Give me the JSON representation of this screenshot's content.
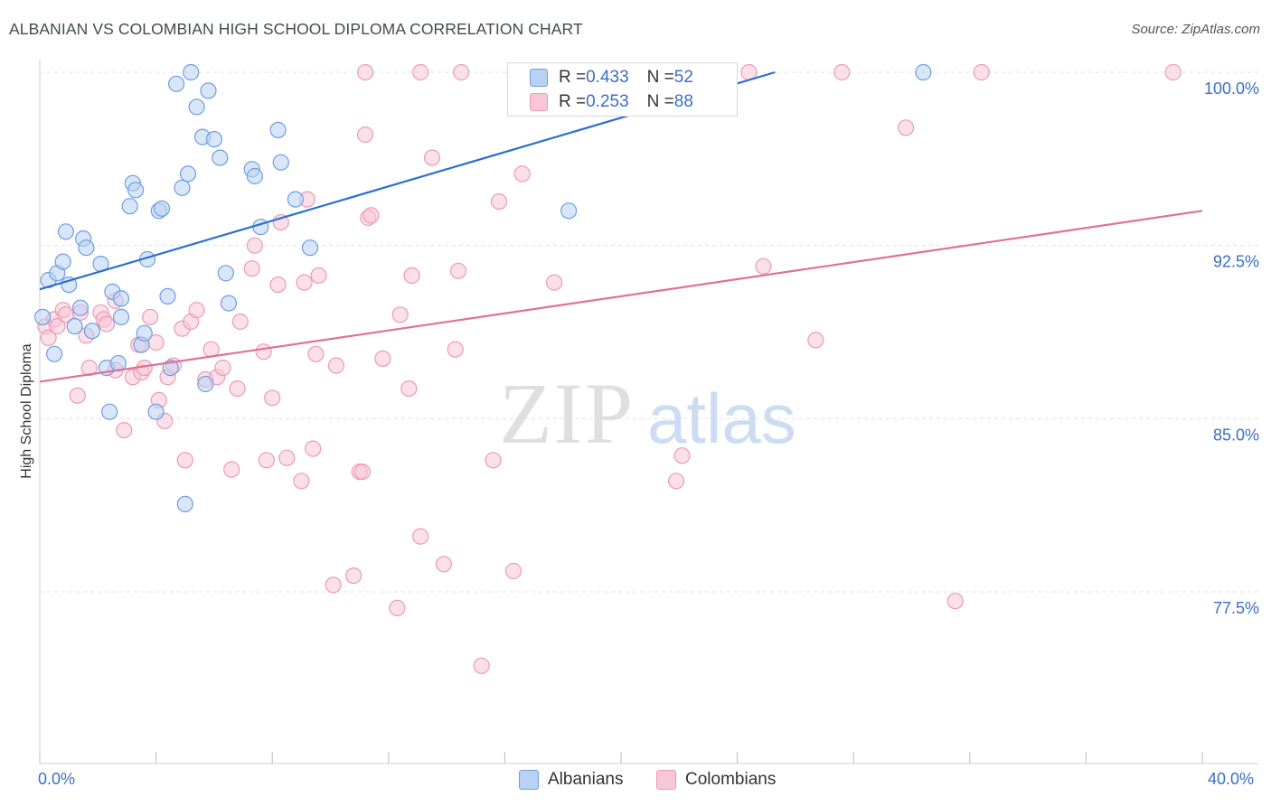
{
  "title": "ALBANIAN VS COLOMBIAN HIGH SCHOOL DIPLOMA CORRELATION CHART",
  "source": "Source: ZipAtlas.com",
  "watermark": {
    "zip": "ZIP",
    "atlas": "atlas"
  },
  "colors": {
    "albanians_fill": "#b9d2f4",
    "albanians_stroke": "#6d9ee0",
    "albanians_line": "#2c6fcf",
    "colombians_fill": "#f8c6d6",
    "colombians_stroke": "#ec9ab6",
    "colombians_line": "#e0709a",
    "axis_text": "#3a6fc4",
    "grid": "#e1e1e1"
  },
  "legend_top": [
    {
      "r_label": "R = ",
      "r_value": "0.433",
      "n_label": "N = ",
      "n_value": "52"
    },
    {
      "r_label": "R = ",
      "r_value": "0.253",
      "n_label": "N = ",
      "n_value": "88"
    }
  ],
  "chart_data": {
    "type": "scatter",
    "title": "ALBANIAN VS COLOMBIAN HIGH SCHOOL DIPLOMA CORRELATION CHART",
    "xlabel": "",
    "ylabel": "High School Diploma",
    "xlim": [
      0,
      40
    ],
    "ylim": [
      70.0,
      101.0
    ],
    "x_tick_labels": [
      "0.0%",
      "40.0%"
    ],
    "y_ticks": [
      77.5,
      85.0,
      92.5,
      100.0
    ],
    "y_tick_labels": [
      "77.5%",
      "85.0%",
      "92.5%",
      "100.0%"
    ],
    "grid": true,
    "legend_placement": "bottom",
    "series": [
      {
        "name": "Albanians",
        "r": 0.433,
        "n": 52,
        "trend": {
          "x": [
            0.0,
            25.3
          ],
          "y": [
            90.6,
            100.0
          ]
        },
        "points": [
          [
            0.1,
            89.4
          ],
          [
            0.3,
            91.0
          ],
          [
            0.5,
            87.8
          ],
          [
            0.6,
            91.3
          ],
          [
            0.8,
            91.8
          ],
          [
            0.9,
            93.1
          ],
          [
            1.0,
            90.8
          ],
          [
            1.2,
            89.0
          ],
          [
            1.4,
            89.8
          ],
          [
            1.5,
            92.8
          ],
          [
            1.6,
            92.4
          ],
          [
            1.8,
            88.8
          ],
          [
            2.1,
            91.7
          ],
          [
            2.3,
            87.2
          ],
          [
            2.4,
            85.3
          ],
          [
            2.5,
            90.5
          ],
          [
            2.8,
            89.4
          ],
          [
            2.8,
            90.2
          ],
          [
            2.7,
            87.4
          ],
          [
            3.1,
            94.2
          ],
          [
            3.2,
            95.2
          ],
          [
            3.3,
            94.9
          ],
          [
            3.5,
            88.2
          ],
          [
            3.6,
            88.7
          ],
          [
            3.7,
            91.9
          ],
          [
            4.0,
            85.3
          ],
          [
            4.1,
            94.0
          ],
          [
            4.2,
            94.1
          ],
          [
            4.4,
            90.3
          ],
          [
            4.5,
            87.2
          ],
          [
            4.7,
            99.5
          ],
          [
            4.9,
            95.0
          ],
          [
            5.0,
            81.3
          ],
          [
            5.1,
            95.6
          ],
          [
            5.2,
            100.0
          ],
          [
            5.4,
            98.5
          ],
          [
            5.6,
            97.2
          ],
          [
            5.7,
            86.5
          ],
          [
            5.8,
            99.2
          ],
          [
            6.0,
            97.1
          ],
          [
            6.2,
            96.3
          ],
          [
            6.4,
            91.3
          ],
          [
            6.5,
            90.0
          ],
          [
            7.3,
            95.8
          ],
          [
            7.4,
            95.5
          ],
          [
            7.6,
            93.3
          ],
          [
            8.2,
            97.5
          ],
          [
            8.3,
            96.1
          ],
          [
            8.8,
            94.5
          ],
          [
            9.3,
            92.4
          ],
          [
            18.2,
            94.0
          ],
          [
            30.4,
            100.0
          ]
        ]
      },
      {
        "name": "Colombians",
        "r": 0.253,
        "n": 88,
        "trend": {
          "x": [
            0.0,
            40.0
          ],
          "y": [
            86.6,
            94.0
          ]
        },
        "points": [
          [
            0.2,
            89.0
          ],
          [
            0.3,
            88.5
          ],
          [
            0.5,
            89.3
          ],
          [
            0.6,
            89.0
          ],
          [
            0.8,
            89.7
          ],
          [
            0.9,
            89.5
          ],
          [
            1.3,
            86.0
          ],
          [
            1.4,
            89.6
          ],
          [
            1.6,
            88.6
          ],
          [
            1.7,
            87.2
          ],
          [
            2.1,
            89.6
          ],
          [
            2.2,
            89.3
          ],
          [
            2.3,
            89.1
          ],
          [
            2.6,
            87.1
          ],
          [
            2.6,
            90.1
          ],
          [
            2.9,
            84.5
          ],
          [
            3.2,
            86.8
          ],
          [
            3.4,
            88.2
          ],
          [
            3.5,
            87.0
          ],
          [
            3.6,
            87.2
          ],
          [
            3.8,
            89.4
          ],
          [
            4.0,
            88.3
          ],
          [
            4.1,
            85.8
          ],
          [
            4.3,
            84.9
          ],
          [
            4.4,
            86.8
          ],
          [
            4.6,
            87.3
          ],
          [
            4.9,
            88.9
          ],
          [
            5.0,
            83.2
          ],
          [
            5.2,
            89.2
          ],
          [
            5.4,
            89.7
          ],
          [
            5.7,
            86.7
          ],
          [
            5.9,
            88.0
          ],
          [
            6.1,
            86.8
          ],
          [
            6.3,
            87.2
          ],
          [
            6.6,
            82.8
          ],
          [
            6.8,
            86.3
          ],
          [
            6.9,
            89.2
          ],
          [
            7.3,
            91.5
          ],
          [
            7.4,
            92.5
          ],
          [
            7.7,
            87.9
          ],
          [
            7.8,
            83.2
          ],
          [
            8.0,
            85.9
          ],
          [
            8.2,
            90.8
          ],
          [
            8.3,
            93.5
          ],
          [
            8.5,
            83.3
          ],
          [
            9.0,
            82.3
          ],
          [
            9.1,
            90.9
          ],
          [
            9.2,
            94.5
          ],
          [
            9.4,
            83.7
          ],
          [
            9.5,
            87.8
          ],
          [
            9.6,
            91.2
          ],
          [
            10.1,
            77.8
          ],
          [
            10.2,
            87.3
          ],
          [
            10.8,
            78.2
          ],
          [
            11.0,
            82.7
          ],
          [
            11.1,
            82.7
          ],
          [
            11.3,
            93.7
          ],
          [
            11.4,
            93.8
          ],
          [
            11.2,
            100.0
          ],
          [
            11.2,
            97.3
          ],
          [
            11.8,
            87.6
          ],
          [
            12.3,
            76.8
          ],
          [
            12.4,
            89.5
          ],
          [
            12.7,
            86.3
          ],
          [
            12.8,
            91.2
          ],
          [
            13.1,
            79.9
          ],
          [
            13.1,
            100.0
          ],
          [
            13.5,
            96.3
          ],
          [
            13.9,
            78.7
          ],
          [
            14.3,
            88.0
          ],
          [
            14.4,
            91.4
          ],
          [
            14.5,
            100.0
          ],
          [
            15.2,
            74.3
          ],
          [
            15.6,
            83.2
          ],
          [
            15.8,
            94.4
          ],
          [
            16.3,
            78.4
          ],
          [
            16.6,
            95.6
          ],
          [
            17.7,
            90.9
          ],
          [
            21.9,
            82.3
          ],
          [
            22.1,
            83.4
          ],
          [
            24.4,
            100.0
          ],
          [
            24.9,
            91.6
          ],
          [
            26.7,
            88.4
          ],
          [
            27.6,
            100.0
          ],
          [
            29.8,
            97.6
          ],
          [
            31.5,
            77.1
          ],
          [
            32.4,
            100.0
          ],
          [
            39.0,
            100.0
          ]
        ]
      }
    ]
  },
  "x_axis": {
    "min_label": "0.0%",
    "max_label": "40.0%"
  }
}
